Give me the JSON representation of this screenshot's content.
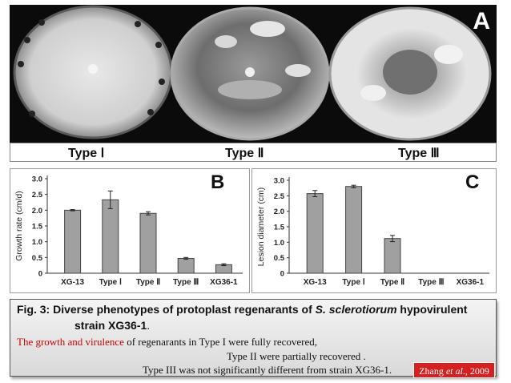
{
  "panel_a": {
    "letter": "A",
    "type_labels": [
      "Type Ⅰ",
      "Type Ⅱ",
      "Type Ⅲ"
    ]
  },
  "chart_data": [
    {
      "type": "bar",
      "panel_letter": "B",
      "ylabel": "Growth rate (cm/d)",
      "categories": [
        "XG-13",
        "Type Ⅰ",
        "Type Ⅱ",
        "Type Ⅲ",
        "XG36-1"
      ],
      "values": [
        2.0,
        2.33,
        1.9,
        0.47,
        0.27
      ],
      "errors": [
        0.02,
        0.28,
        0.05,
        0.03,
        0.03
      ],
      "ylim": [
        0,
        3.0
      ],
      "yticks": [
        "0",
        "0.5",
        "1.0",
        "1.5",
        "2.0",
        "2.5",
        "3.0"
      ],
      "bar_color": "#a0a0a0"
    },
    {
      "type": "bar",
      "panel_letter": "C",
      "ylabel": "Lesion diameter (cm)",
      "categories": [
        "XG-13",
        "Type Ⅰ",
        "Type Ⅱ",
        "Type Ⅲ",
        "XG36-1"
      ],
      "values": [
        2.57,
        2.8,
        1.12,
        0.0,
        0.0
      ],
      "errors": [
        0.1,
        0.04,
        0.1,
        0,
        0
      ],
      "ylim": [
        0,
        3.0
      ],
      "yticks": [
        "0",
        "0.5",
        "1.0",
        "1.5",
        "2.0",
        "2.5",
        "3.0"
      ],
      "bar_color": "#a0a0a0"
    }
  ],
  "caption": {
    "line1_prefix": "Fig. 3: Diverse phenotypes of protoplast regenarants of ",
    "line1_species": "S. sclerotiorum",
    "line1_suffix": " hypovirulent",
    "line2": "strain XG36-1",
    "line2_end": ".",
    "line3_red": "The growth and virulence",
    "line3_rest": " of regenarants in Type I were fully recovered,",
    "line4": "Type II were partially recovered .",
    "line5": "Type III was not significantly different from strain XG36-1."
  },
  "citation": {
    "author": "Zhang ",
    "etal": "et al",
    "year": "., 2009"
  }
}
